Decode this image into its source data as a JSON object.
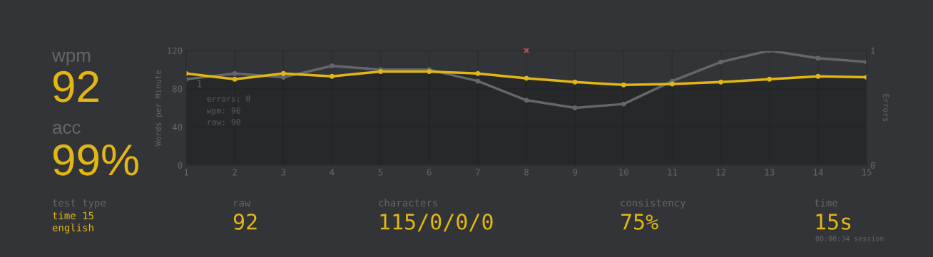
{
  "chart_data": [
    {
      "type": "other",
      "annotations": [
        "wpm",
        "92",
        "acc",
        "99%",
        "test type",
        "time 15",
        "english",
        "raw",
        "92",
        "characters",
        "115/0/0/0",
        "consistency",
        "75%",
        "time",
        "15s",
        "00:00:34 session"
      ]
    },
    {
      "type": "line",
      "x": [
        1,
        2,
        3,
        4,
        5,
        6,
        7,
        8,
        9,
        10,
        11,
        12,
        13,
        14,
        15
      ],
      "ylabel": "Words per Minute",
      "y2label": "Errors",
      "xlim": [
        1,
        15
      ],
      "xticks": [
        1,
        2,
        3,
        4,
        5,
        6,
        7,
        8,
        9,
        10,
        11,
        12,
        13,
        14,
        15
      ],
      "ylim": [
        0,
        120
      ],
      "yticks": [
        0,
        40,
        80,
        120
      ],
      "y2lim": [
        0,
        1
      ],
      "y2ticks": [
        0,
        1
      ],
      "grid": true,
      "marker": "circle",
      "line_style": "solid",
      "series": [
        {
          "type": "line",
          "color": "#646669",
          "values": [
            90,
            96,
            92,
            104,
            100,
            100,
            88,
            68,
            60,
            64,
            88,
            108,
            120,
            112,
            108
          ]
        },
        {
          "type": "area",
          "color": "#e2b714",
          "values": [
            96,
            90,
            96,
            93,
            98,
            98,
            96,
            91,
            87,
            84,
            85,
            87,
            90,
            93,
            92
          ]
        },
        {
          "type": "scatter",
          "axis": "y2",
          "marker": "cross",
          "color": "#ca4754",
          "values": [
            null,
            null,
            null,
            null,
            null,
            null,
            null,
            1,
            null,
            null,
            null,
            null,
            null,
            null,
            null
          ]
        }
      ],
      "annotations": [
        "1",
        "errors: 0",
        "wpm: 96",
        "raw: 90"
      ]
    }
  ]
}
